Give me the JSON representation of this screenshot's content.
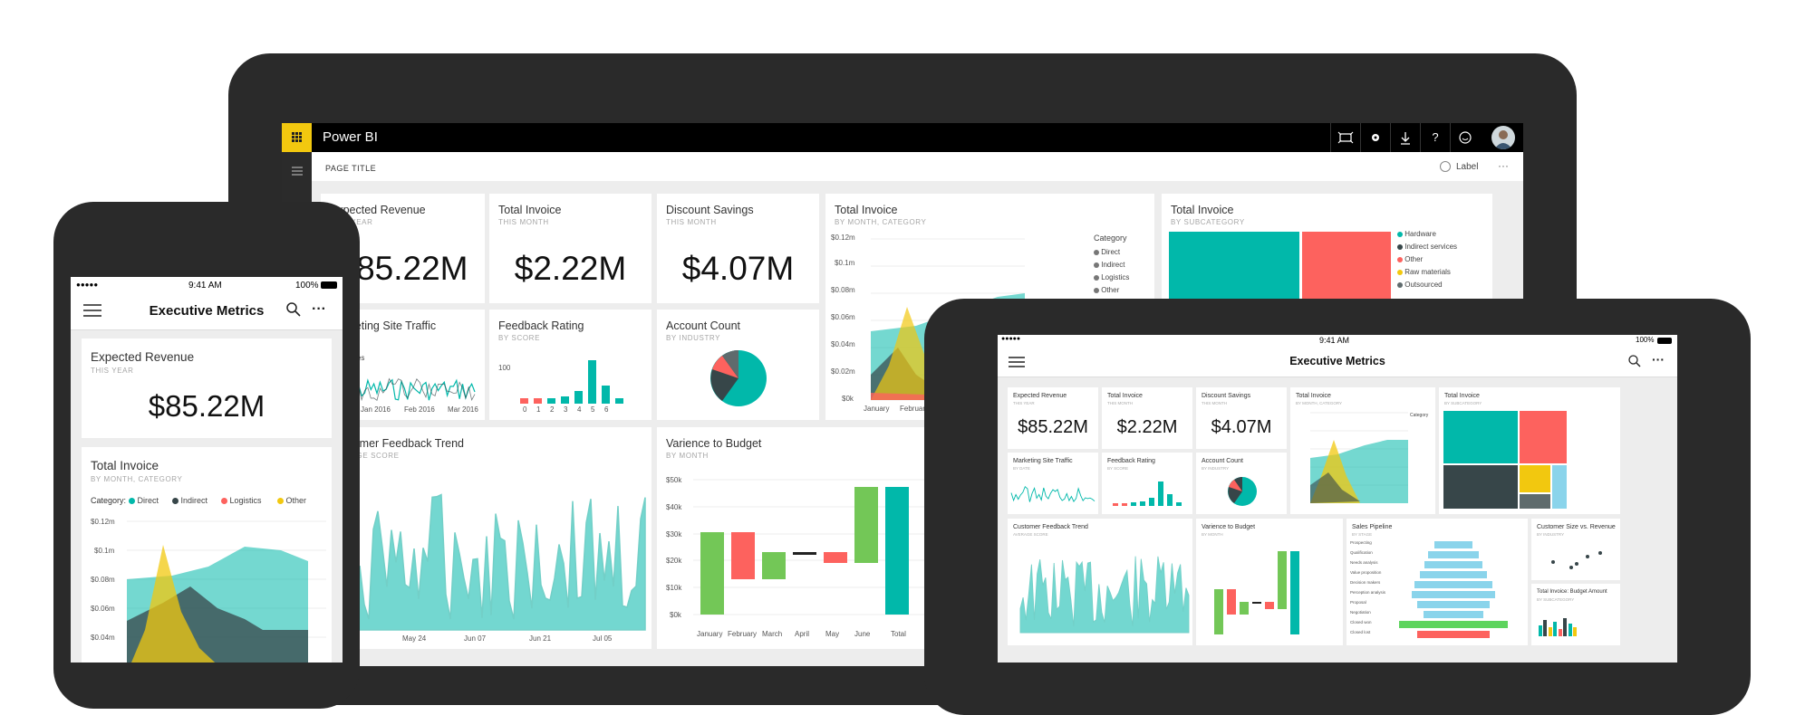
{
  "colors": {
    "teal": "#01b8aa",
    "dark": "#374649",
    "red": "#fd625e",
    "yellow": "#f2c80f",
    "green": "#73c757",
    "device": "#2a2a2a",
    "brand": "#f2c80f"
  },
  "laptop": {
    "app_title": "Power BI",
    "page_title": "PAGE TITLE",
    "label_toggle": "Label",
    "more": "···",
    "toolbar_icons": [
      "fullscreen-icon",
      "settings-icon",
      "download-icon",
      "help-icon",
      "feedback-icon",
      "avatar"
    ],
    "cards": {
      "exp_rev": {
        "title": "Expected Revenue",
        "sub": "THIS YEAR",
        "value": "$85.22M"
      },
      "inv": {
        "title": "Total Invoice",
        "sub": "THIS MONTH",
        "value": "$2.22M"
      },
      "disc": {
        "title": "Discount Savings",
        "sub": "THIS MONTH",
        "value": "$4.07M"
      },
      "inv_cat": {
        "title": "Total Invoice",
        "sub": "BY MONTH, CATEGORY",
        "legend_title": "Category",
        "legend": [
          "Direct",
          "Indirect",
          "Logistics",
          "Other"
        ],
        "yticks": [
          "$0.12m",
          "$0.1m",
          "$0.08m",
          "$0.06m",
          "$0.04m",
          "$0.02m",
          "$0k"
        ],
        "xticks": [
          "January",
          "February"
        ]
      },
      "inv_sub": {
        "title": "Total Invoice",
        "sub": "BY SUBCATEGORY",
        "legend": [
          "Hardware",
          "Indirect services",
          "Other",
          "Raw materials",
          "Outsourced"
        ]
      },
      "traffic": {
        "title": "Marketing Site Traffic",
        "legend": "Bounces",
        "xticks": [
          "Jan 2016",
          "Feb 2016",
          "Mar 2016"
        ]
      },
      "feedback": {
        "title": "Feedback Rating",
        "sub": "BY SCORE",
        "ytick": "100",
        "xticks": [
          "0",
          "1",
          "2",
          "3",
          "4",
          "5",
          "6"
        ]
      },
      "account": {
        "title": "Account Count",
        "sub": "BY INDUSTRY"
      },
      "trend": {
        "title": "Customer Feedback Trend",
        "sub": "AVERAGE SCORE",
        "xticks": [
          "May 24",
          "Jun 07",
          "Jun 21",
          "Jul 05"
        ]
      },
      "variance": {
        "title": "Varience to Budget",
        "sub": "BY MONTH",
        "yticks": [
          "$50k",
          "$40k",
          "$30k",
          "$20k",
          "$10k",
          "$0k"
        ],
        "xticks": [
          "January",
          "February",
          "March",
          "April",
          "May",
          "June",
          "Total"
        ]
      }
    }
  },
  "phone": {
    "status_time": "9:41 AM",
    "battery": "100%",
    "title": "Executive Metrics",
    "card1": {
      "title": "Expected Revenue",
      "sub": "THIS YEAR",
      "value": "$85.22M"
    },
    "card2": {
      "title": "Total Invoice",
      "sub": "BY MONTH, CATEGORY",
      "legend_title": "Category:",
      "legend": [
        "Direct",
        "Indirect",
        "Logistics",
        "Other"
      ],
      "yticks": [
        "$0.12m",
        "$0.1m",
        "$0.08m",
        "$0.06m",
        "$0.04m"
      ]
    }
  },
  "tablet": {
    "status_time": "9:41 AM",
    "battery": "100%",
    "title": "Executive Metrics",
    "cards": {
      "exp_rev": {
        "title": "Expected Revenue",
        "sub": "THIS YEAR",
        "value": "$85.22M"
      },
      "inv": {
        "title": "Total Invoice",
        "sub": "THIS MONTH",
        "value": "$2.22M"
      },
      "disc": {
        "title": "Discount Savings",
        "sub": "THIS MONTH",
        "value": "$4.07M"
      },
      "inv_cat": {
        "title": "Total Invoice",
        "sub": "BY MONTH, CATEGORY",
        "legend_title": "Category"
      },
      "inv_sub": {
        "title": "Total Invoice",
        "sub": "BY SUBCATEGORY"
      },
      "traffic": {
        "title": "Marketing Site Traffic",
        "sub": "BY DATE"
      },
      "feedback": {
        "title": "Feedback Rating",
        "sub": "BY SCORE"
      },
      "account": {
        "title": "Account Count",
        "sub": "BY INDUSTRY"
      },
      "trend": {
        "title": "Customer Feedback Trend",
        "sub": "AVERAGE SCORE"
      },
      "variance": {
        "title": "Varience to Budget",
        "sub": "BY MONTH"
      },
      "pipeline": {
        "title": "Sales Pipeline",
        "sub": "BY STAGE",
        "stages": [
          "Prospecting",
          "Qualification",
          "Needs analysis",
          "Value proposition",
          "Decision makers",
          "Perception analysis",
          "Proposal",
          "Negotiation",
          "Closed won",
          "Closed lost"
        ]
      },
      "size": {
        "title": "Customer Size vs. Revenue",
        "sub": "BY INDUSTRY"
      },
      "budget": {
        "title": "Total Invoice: Budget Amount",
        "sub": "BY SUBCATEGORY"
      }
    }
  }
}
